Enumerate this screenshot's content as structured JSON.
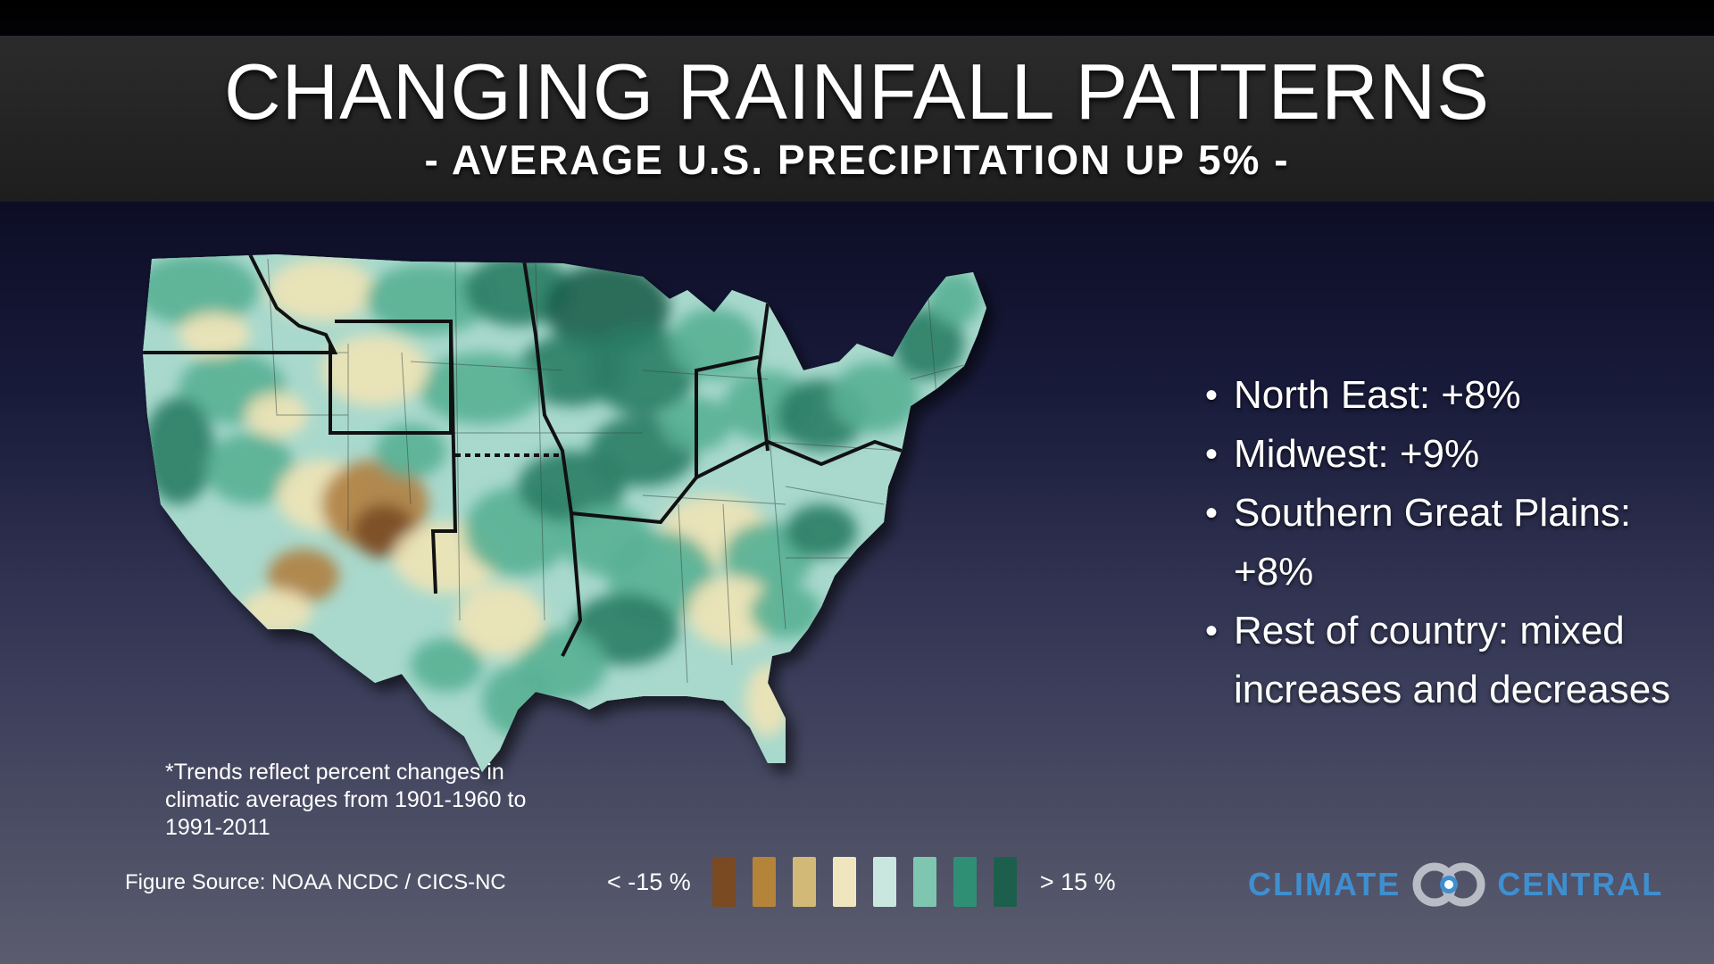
{
  "header": {
    "title": "CHANGING RAINFALL PATTERNS",
    "subtitle": "- AVERAGE U.S. PRECIPITATION UP 5% -"
  },
  "bullets": [
    {
      "text": "North East: +8%"
    },
    {
      "text": "Midwest: +9%"
    },
    {
      "text": "Southern Great Plains: +8%"
    },
    {
      "text": "Rest of country: mixed increases and decreases"
    }
  ],
  "note": "*Trends reflect percent changes in climatic averages from 1901-1960 to 1991-2011",
  "source": "Figure Source: NOAA NCDC /  CICS-NC",
  "legend": {
    "low_label": "< -15 %",
    "high_label": "> 15 %",
    "colors": [
      "#7a4a22",
      "#b4843a",
      "#d2b978",
      "#efe6bf",
      "#c9e7df",
      "#7fc6b0",
      "#2f8f74",
      "#1d5f4d"
    ]
  },
  "logo": {
    "left_text": "CLIMATE",
    "right_text": "CENTRAL",
    "color": "#3f8fd0"
  },
  "map": {
    "colors": {
      "base": "#a9d9cd",
      "medium": "#58b093",
      "dark": "#2a7d64",
      "darker": "#1d5f4d",
      "tan": "#efe3b6",
      "brown": "#b08040",
      "dark_brown": "#7a4a22"
    }
  }
}
